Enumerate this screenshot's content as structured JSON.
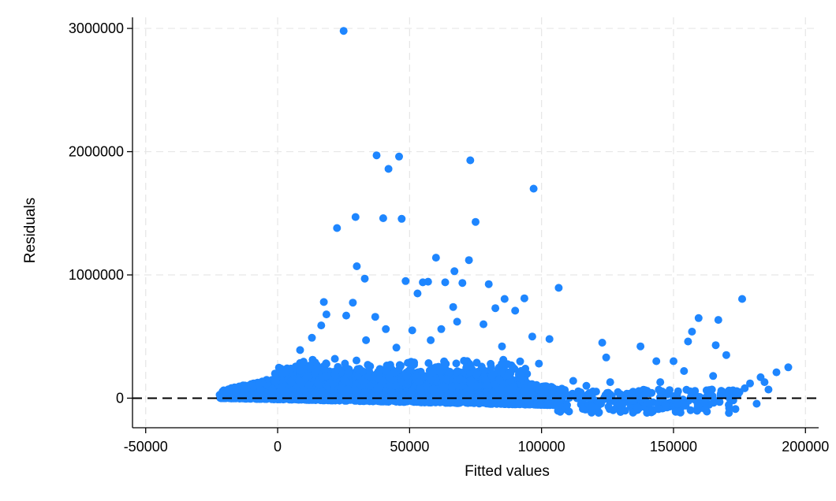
{
  "chart_data": {
    "type": "scatter",
    "xlabel": "Fitted values",
    "ylabel": "Residuals",
    "xlim": [
      -55000,
      205000
    ],
    "ylim": [
      -240000,
      3090000
    ],
    "xticks": [
      "-50000",
      "0",
      "50000",
      "100000",
      "150000",
      "200000"
    ],
    "xtick_values": [
      -50000,
      0,
      50000,
      100000,
      150000,
      200000
    ],
    "yticks": [
      "0",
      "1000000",
      "2000000",
      "3000000"
    ],
    "ytick_values": [
      0,
      1000000,
      2000000,
      3000000
    ],
    "grid": true,
    "reference_line_y": 0,
    "marker_color": "#1e86ff",
    "series": [
      {
        "points": [
          [
            25000,
            2980000
          ],
          [
            37500,
            1970000
          ],
          [
            46000,
            1960000
          ],
          [
            42000,
            1860000
          ],
          [
            73000,
            1930000
          ],
          [
            97000,
            1700000
          ],
          [
            29500,
            1470000
          ],
          [
            40000,
            1460000
          ],
          [
            47000,
            1455000
          ],
          [
            22500,
            1380000
          ],
          [
            75000,
            1430000
          ],
          [
            30000,
            1070000
          ],
          [
            33000,
            970000
          ],
          [
            60000,
            1140000
          ],
          [
            72500,
            1120000
          ],
          [
            48500,
            950000
          ],
          [
            55000,
            940000
          ],
          [
            57000,
            945000
          ],
          [
            67000,
            1030000
          ],
          [
            63500,
            940000
          ],
          [
            70000,
            935000
          ],
          [
            80000,
            925000
          ],
          [
            106500,
            895000
          ],
          [
            53000,
            850000
          ],
          [
            176000,
            805000
          ],
          [
            17500,
            780000
          ],
          [
            28500,
            775000
          ],
          [
            86000,
            805000
          ],
          [
            93500,
            810000
          ],
          [
            18500,
            680000
          ],
          [
            26000,
            670000
          ],
          [
            37000,
            660000
          ],
          [
            16500,
            590000
          ],
          [
            41000,
            560000
          ],
          [
            66500,
            740000
          ],
          [
            90000,
            710000
          ],
          [
            82500,
            730000
          ],
          [
            159500,
            650000
          ],
          [
            167000,
            635000
          ],
          [
            123000,
            450000
          ],
          [
            137500,
            420000
          ],
          [
            143500,
            300000
          ],
          [
            124500,
            330000
          ],
          [
            170000,
            350000
          ],
          [
            183000,
            170000
          ],
          [
            189000,
            210000
          ],
          [
            193500,
            250000
          ],
          [
            184500,
            130000
          ],
          [
            186000,
            70000
          ],
          [
            181500,
            -45000
          ],
          [
            166000,
            430000
          ],
          [
            155500,
            460000
          ],
          [
            157000,
            540000
          ],
          [
            150000,
            300000
          ],
          [
            145000,
            130000
          ],
          [
            126000,
            130000
          ],
          [
            140000,
            60000
          ],
          [
            13000,
            490000
          ],
          [
            8500,
            390000
          ],
          [
            5000,
            240000
          ],
          [
            3000,
            210000
          ],
          [
            -1000,
            200000
          ],
          [
            96500,
            500000
          ],
          [
            103000,
            480000
          ],
          [
            78000,
            600000
          ],
          [
            68000,
            620000
          ],
          [
            33500,
            470000
          ],
          [
            58000,
            470000
          ],
          [
            85000,
            420000
          ],
          [
            45000,
            410000
          ],
          [
            62000,
            560000
          ],
          [
            51000,
            550000
          ],
          [
            99000,
            280000
          ],
          [
            112000,
            140000
          ],
          [
            117000,
            100000
          ],
          [
            131000,
            20000
          ],
          [
            135000,
            -20000
          ],
          [
            147000,
            -60000
          ],
          [
            152000,
            -110000
          ],
          [
            162000,
            -90000
          ],
          [
            171000,
            -120000
          ],
          [
            177000,
            80000
          ],
          [
            179000,
            120000
          ],
          [
            165000,
            180000
          ],
          [
            154000,
            220000
          ]
        ]
      }
    ]
  }
}
